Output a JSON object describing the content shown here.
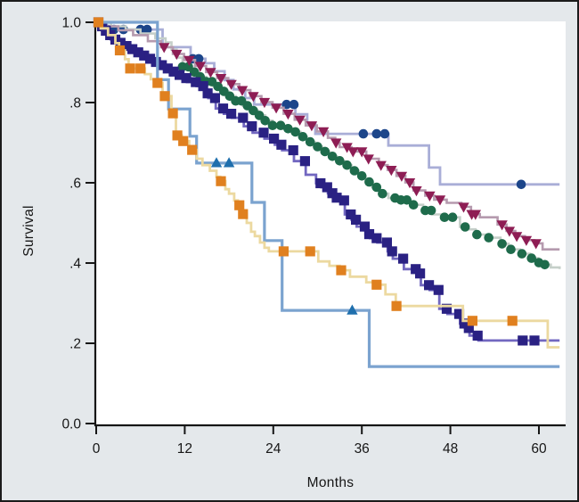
{
  "figure": {
    "background": "#e4e8eb",
    "plot_background": "#ffffff",
    "border_color": "#1b1b1b",
    "axis_color": "#161616",
    "text_color": "#161616"
  },
  "chart_data": {
    "type": "line",
    "subtype": "kaplan_meier_step_survival",
    "title": "",
    "xlabel": "Months",
    "ylabel": "Survival",
    "xlim": [
      0,
      63.7
    ],
    "ylim": [
      0,
      1
    ],
    "grid": false,
    "legend": false,
    "x_ticks": [
      {
        "value": 0,
        "label": "0"
      },
      {
        "value": 12,
        "label": "12"
      },
      {
        "value": 24,
        "label": "24"
      },
      {
        "value": 36,
        "label": "36"
      },
      {
        "value": 48,
        "label": "48"
      },
      {
        "value": 60,
        "label": "60"
      }
    ],
    "y_ticks": [
      {
        "value": 1.0,
        "label": "1.0"
      },
      {
        "value": 0.8,
        "label": ".8"
      },
      {
        "value": 0.6,
        "label": ".6"
      },
      {
        "value": 0.4,
        "label": ".4"
      },
      {
        "value": 0.2,
        "label": ".2"
      },
      {
        "value": 0.0,
        "label": "0.0"
      }
    ],
    "series": [
      {
        "name": "navy-circles",
        "line_color": "#a9aed7",
        "line_width": 2.8,
        "marker_shape": "circle",
        "marker_color": "#1c458a",
        "steps": [
          [
            0,
            1
          ],
          [
            1.4,
            0.982
          ],
          [
            9,
            0.938
          ],
          [
            12.8,
            0.909
          ],
          [
            14.8,
            0.898
          ],
          [
            16,
            0.878
          ],
          [
            17.4,
            0.856
          ],
          [
            18.6,
            0.833
          ],
          [
            20.2,
            0.811
          ],
          [
            21.4,
            0.795
          ],
          [
            27,
            0.771
          ],
          [
            28.6,
            0.749
          ],
          [
            29.7,
            0.722
          ],
          [
            39.6,
            0.693
          ],
          [
            45.1,
            0.638
          ],
          [
            46.6,
            0.596
          ],
          [
            62.8,
            0.596
          ]
        ],
        "censor_marker_months": [
          1.6,
          2.4,
          3.7,
          6,
          6.9,
          13.1,
          13.9,
          25.8,
          26.8,
          36.2,
          38,
          39.1,
          57.6
        ]
      },
      {
        "name": "green-circles",
        "line_color": "#c5cfc9",
        "line_width": 2.6,
        "marker_shape": "circle",
        "marker_color": "#1e6b4b",
        "steps": [
          [
            0,
            1
          ],
          [
            2,
            0.99
          ],
          [
            4,
            0.982
          ],
          [
            6,
            0.972
          ],
          [
            8,
            0.96
          ],
          [
            9.4,
            0.95
          ],
          [
            10.2,
            0.932
          ],
          [
            10.9,
            0.912
          ],
          [
            11.7,
            0.889
          ],
          [
            12.9,
            0.876
          ],
          [
            13.9,
            0.864
          ],
          [
            14.9,
            0.852
          ],
          [
            15.9,
            0.84
          ],
          [
            16.9,
            0.828
          ],
          [
            17.9,
            0.816
          ],
          [
            18.9,
            0.804
          ],
          [
            19.9,
            0.792
          ],
          [
            20.9,
            0.78
          ],
          [
            21.9,
            0.768
          ],
          [
            22.9,
            0.755
          ],
          [
            23.9,
            0.743
          ],
          [
            25.4,
            0.735
          ],
          [
            26.9,
            0.727
          ],
          [
            27.7,
            0.715
          ],
          [
            28.6,
            0.702
          ],
          [
            29.6,
            0.69
          ],
          [
            30.6,
            0.678
          ],
          [
            31.6,
            0.666
          ],
          [
            32.6,
            0.655
          ],
          [
            33.6,
            0.644
          ],
          [
            34.6,
            0.63
          ],
          [
            35.6,
            0.617
          ],
          [
            36.5,
            0.602
          ],
          [
            37.4,
            0.589
          ],
          [
            38.4,
            0.573
          ],
          [
            39.6,
            0.562
          ],
          [
            41,
            0.557
          ],
          [
            42.6,
            0.545
          ],
          [
            44.3,
            0.531
          ],
          [
            45.6,
            0.521
          ],
          [
            47,
            0.514
          ],
          [
            49.3,
            0.49
          ],
          [
            50.3,
            0.484
          ],
          [
            51.4,
            0.471
          ],
          [
            52.8,
            0.463
          ],
          [
            54.8,
            0.448
          ],
          [
            55.9,
            0.434
          ],
          [
            57.4,
            0.423
          ],
          [
            58.8,
            0.412
          ],
          [
            59.9,
            0.401
          ],
          [
            60.7,
            0.396
          ],
          [
            61.6,
            0.389
          ],
          [
            62.8,
            0.385
          ]
        ],
        "censor_marker_months": [
          11.7,
          12.5,
          13.3,
          14.1,
          14.9,
          15.7,
          16.5,
          17.3,
          18.1,
          18.9,
          19.7,
          20.5,
          21.3,
          22.1,
          22.9,
          23.9,
          25,
          26,
          27,
          28,
          29,
          30,
          31,
          32,
          33,
          34,
          35,
          36,
          37,
          38,
          38.8,
          40.5,
          41.3,
          42.1,
          43,
          44.6,
          45.4,
          47.2,
          48.3,
          50,
          51.6,
          53.2,
          55,
          56.2,
          57.7,
          59,
          60,
          60.8
        ]
      },
      {
        "name": "maroon-triangles",
        "line_color": "#b59aae",
        "line_width": 2.6,
        "marker_shape": "triangle-down",
        "marker_color": "#8e1d54",
        "steps": [
          [
            0,
            1
          ],
          [
            1,
            0.99
          ],
          [
            3,
            0.98
          ],
          [
            5,
            0.968
          ],
          [
            7,
            0.953
          ],
          [
            8.8,
            0.938
          ],
          [
            10.4,
            0.921
          ],
          [
            11.9,
            0.906
          ],
          [
            13.4,
            0.891
          ],
          [
            14.9,
            0.876
          ],
          [
            16.4,
            0.861
          ],
          [
            17.9,
            0.846
          ],
          [
            19.4,
            0.831
          ],
          [
            20.9,
            0.816
          ],
          [
            22.4,
            0.801
          ],
          [
            23.9,
            0.787
          ],
          [
            25.4,
            0.772
          ],
          [
            26.9,
            0.757
          ],
          [
            28.4,
            0.743
          ],
          [
            29.9,
            0.728
          ],
          [
            31.4,
            0.712
          ],
          [
            32.4,
            0.7
          ],
          [
            33,
            0.689
          ],
          [
            34.6,
            0.678
          ],
          [
            36.6,
            0.66
          ],
          [
            38.3,
            0.644
          ],
          [
            39.5,
            0.632
          ],
          [
            40.7,
            0.617
          ],
          [
            41.9,
            0.601
          ],
          [
            43,
            0.581
          ],
          [
            44.6,
            0.568
          ],
          [
            45.8,
            0.558
          ],
          [
            47.5,
            0.55
          ],
          [
            49.5,
            0.54
          ],
          [
            50.8,
            0.522
          ],
          [
            52,
            0.514
          ],
          [
            54.4,
            0.496
          ],
          [
            55.6,
            0.48
          ],
          [
            56.8,
            0.467
          ],
          [
            58.1,
            0.457
          ],
          [
            59.4,
            0.449
          ],
          [
            60.5,
            0.434
          ],
          [
            62.8,
            0.434
          ]
        ],
        "censor_marker_months": [
          9.2,
          10.9,
          12.6,
          14.1,
          15.5,
          16.9,
          18.3,
          19.8,
          21.3,
          22.8,
          24.4,
          26,
          27.6,
          29.2,
          30.8,
          32.5,
          34,
          34.8,
          36,
          36.9,
          38.6,
          40,
          41.4,
          42.5,
          43.4,
          45.2,
          46.6,
          49.8,
          50.9,
          51.4,
          55,
          56,
          57,
          58.3,
          59.6
        ]
      },
      {
        "name": "indigo-squares",
        "line_color": "#7267c0",
        "line_width": 2.8,
        "marker_shape": "square",
        "marker_color": "#2a2183",
        "steps": [
          [
            0,
            1
          ],
          [
            0.4,
            0.99
          ],
          [
            0.9,
            0.979
          ],
          [
            1.4,
            0.968
          ],
          [
            2,
            0.957
          ],
          [
            2.7,
            0.949
          ],
          [
            3.4,
            0.941
          ],
          [
            4.2,
            0.933
          ],
          [
            5,
            0.925
          ],
          [
            5.8,
            0.917
          ],
          [
            6.6,
            0.909
          ],
          [
            7.4,
            0.901
          ],
          [
            8.2,
            0.893
          ],
          [
            9,
            0.885
          ],
          [
            9.8,
            0.877
          ],
          [
            10.6,
            0.869
          ],
          [
            11.4,
            0.861
          ],
          [
            12.3,
            0.851
          ],
          [
            13.6,
            0.841
          ],
          [
            14.6,
            0.823
          ],
          [
            15.2,
            0.811
          ],
          [
            16.2,
            0.785
          ],
          [
            17.3,
            0.772
          ],
          [
            18.4,
            0.762
          ],
          [
            20,
            0.741
          ],
          [
            21.2,
            0.725
          ],
          [
            22.8,
            0.71
          ],
          [
            24.2,
            0.695
          ],
          [
            25.2,
            0.681
          ],
          [
            26.8,
            0.654
          ],
          [
            28.4,
            0.62
          ],
          [
            29.8,
            0.599
          ],
          [
            30.5,
            0.589
          ],
          [
            31.4,
            0.574
          ],
          [
            32.1,
            0.563
          ],
          [
            32.7,
            0.556
          ],
          [
            33.7,
            0.521
          ],
          [
            34.6,
            0.508
          ],
          [
            35.3,
            0.491
          ],
          [
            36.5,
            0.472
          ],
          [
            37.1,
            0.462
          ],
          [
            38.1,
            0.451
          ],
          [
            39.5,
            0.429
          ],
          [
            40.2,
            0.411
          ],
          [
            41.7,
            0.385
          ],
          [
            43.4,
            0.374
          ],
          [
            44,
            0.345
          ],
          [
            45.2,
            0.333
          ],
          [
            46.5,
            0.286
          ],
          [
            47.6,
            0.273
          ],
          [
            49.3,
            0.249
          ],
          [
            50,
            0.238
          ],
          [
            50.6,
            0.219
          ],
          [
            51.8,
            0.207
          ],
          [
            62.8,
            0.207
          ]
        ],
        "censor_marker_months": [
          0.3,
          0.8,
          1.3,
          1.9,
          2.6,
          3.3,
          4.1,
          4.9,
          5.7,
          6.5,
          7.3,
          8.1,
          8.9,
          9.7,
          10.5,
          11.3,
          12.2,
          13.5,
          14.5,
          15.1,
          16.1,
          17.2,
          18.3,
          19.9,
          21.1,
          22.7,
          24.1,
          25.1,
          26.7,
          28.3,
          30.4,
          31.3,
          32,
          32.6,
          33.6,
          34.5,
          35.2,
          36.4,
          37,
          38,
          39.4,
          40.1,
          41.6,
          43.3,
          43.9,
          45.1,
          46.4,
          47.5,
          49.2,
          49.9,
          50.5,
          51.7,
          57.8,
          59.4
        ]
      },
      {
        "name": "blue-triangles",
        "line_color": "#7ba3cf",
        "line_width": 3.2,
        "marker_shape": "triangle-up",
        "marker_color": "#1f6fad",
        "steps": [
          [
            0,
            1
          ],
          [
            8.3,
            0.857
          ],
          [
            9.8,
            0.784
          ],
          [
            12.7,
            0.716
          ],
          [
            13.6,
            0.649
          ],
          [
            21.1,
            0.551
          ],
          [
            22.8,
            0.456
          ],
          [
            25.2,
            0.282
          ],
          [
            37,
            0.142
          ],
          [
            62.8,
            0.142
          ]
        ],
        "censor_marker_months": [
          16.3,
          18,
          34.7
        ]
      },
      {
        "name": "orange-squares",
        "line_color": "#ecd9a0",
        "line_width": 2.8,
        "marker_shape": "square",
        "marker_color": "#e0801f",
        "steps": [
          [
            0,
            1
          ],
          [
            0.6,
            0.985
          ],
          [
            1.6,
            0.968
          ],
          [
            2.6,
            0.948
          ],
          [
            3.1,
            0.93
          ],
          [
            3.9,
            0.908
          ],
          [
            4.4,
            0.885
          ],
          [
            6.6,
            0.871
          ],
          [
            7.4,
            0.858
          ],
          [
            8.2,
            0.849
          ],
          [
            9,
            0.816
          ],
          [
            10.2,
            0.773
          ],
          [
            10.8,
            0.718
          ],
          [
            11.6,
            0.704
          ],
          [
            12.6,
            0.682
          ],
          [
            13.6,
            0.66
          ],
          [
            14.4,
            0.644
          ],
          [
            15.4,
            0.63
          ],
          [
            16.3,
            0.615
          ],
          [
            16.8,
            0.604
          ],
          [
            17.5,
            0.584
          ],
          [
            18,
            0.573
          ],
          [
            18.7,
            0.556
          ],
          [
            19.2,
            0.544
          ],
          [
            19.8,
            0.522
          ],
          [
            20.4,
            0.5
          ],
          [
            21,
            0.478
          ],
          [
            21.5,
            0.467
          ],
          [
            22.2,
            0.451
          ],
          [
            22.8,
            0.438
          ],
          [
            23.4,
            0.429
          ],
          [
            30.1,
            0.404
          ],
          [
            31.6,
            0.393
          ],
          [
            33,
            0.382
          ],
          [
            34.4,
            0.366
          ],
          [
            36.6,
            0.352
          ],
          [
            37.9,
            0.346
          ],
          [
            39.2,
            0.322
          ],
          [
            40.6,
            0.293
          ],
          [
            49.7,
            0.256
          ],
          [
            61.2,
            0.19
          ],
          [
            62.8,
            0.19
          ]
        ],
        "censor_marker_months": [
          0.3,
          3.2,
          4.6,
          6,
          8.3,
          9.3,
          10.4,
          11,
          11.8,
          13,
          16.9,
          19.4,
          19.9,
          25.4,
          29,
          33.2,
          38,
          40.7,
          51,
          56.4
        ]
      }
    ]
  }
}
